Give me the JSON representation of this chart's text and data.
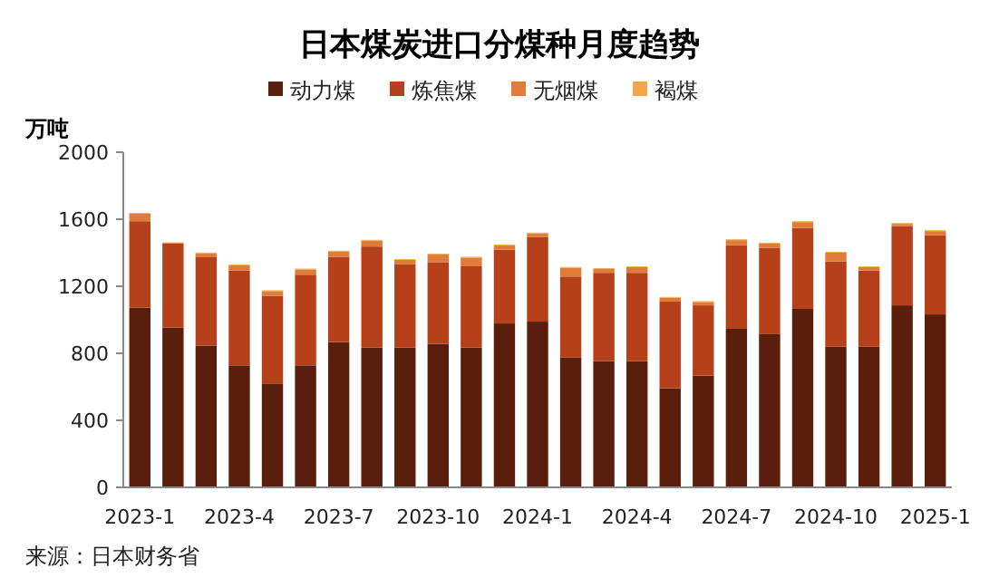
{
  "chart_data": {
    "type": "bar",
    "title": "日本煤炭进口分煤种月度趋势",
    "ylabel": "万吨",
    "stacked": true,
    "legend": "top",
    "categories": [
      "2023-1",
      null,
      null,
      "2023-4",
      null,
      null,
      "2023-7",
      null,
      null,
      "2023-10",
      null,
      null,
      "2024-1",
      null,
      null,
      "2024-4",
      null,
      null,
      "2024-7",
      null,
      null,
      "2024-10",
      null,
      null,
      "2025-1"
    ],
    "series": [
      {
        "name": "动力煤",
        "color": "#5a1e0c",
        "values": [
          1072,
          953,
          846,
          728,
          620,
          728,
          867,
          835,
          835,
          857,
          835,
          978,
          989,
          774,
          753,
          753,
          591,
          667,
          946,
          914,
          1065,
          839,
          839,
          1086,
          1032
        ]
      },
      {
        "name": "炼焦煤",
        "color": "#b5401a",
        "values": [
          516,
          502,
          527,
          566,
          523,
          541,
          509,
          602,
          495,
          487,
          484,
          441,
          506,
          484,
          527,
          527,
          517,
          419,
          498,
          516,
          483,
          509,
          455,
          473,
          473
        ]
      },
      {
        "name": "无烟煤",
        "color": "#e07b39",
        "values": [
          45,
          4,
          23,
          31,
          28,
          31,
          31,
          35,
          27,
          45,
          52,
          24,
          20,
          52,
          23,
          34,
          23,
          20,
          31,
          24,
          35,
          52,
          20,
          13,
          24
        ]
      },
      {
        "name": "褐煤",
        "color": "#f0a848",
        "values": [
          5,
          3,
          5,
          5,
          5,
          5,
          5,
          5,
          5,
          5,
          5,
          5,
          5,
          5,
          5,
          5,
          5,
          5,
          5,
          5,
          5,
          5,
          5,
          5,
          5
        ]
      }
    ],
    "ylim": [
      0,
      2000
    ],
    "yticks": [
      0,
      400,
      800,
      1200,
      1600,
      2000
    ],
    "annotations": [
      "来源：日本财务省"
    ]
  }
}
